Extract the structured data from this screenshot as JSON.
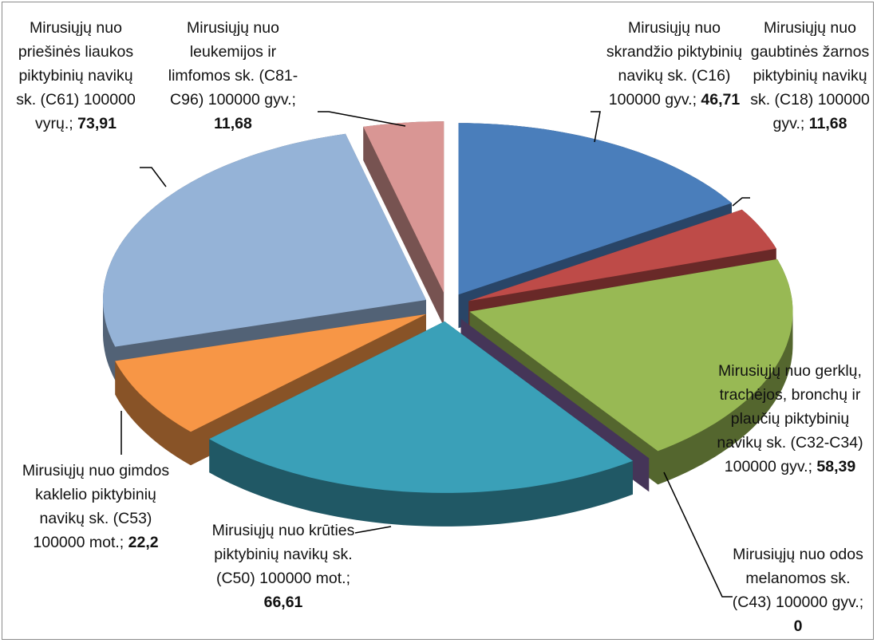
{
  "chart_data": {
    "type": "pie",
    "categories": [
      "Mirusiųjų nuo skrandžio piktybinių navikų sk. (C16) 100000 gyv.;",
      "Mirusiųjų nuo gaubtinės žarnos piktybinių navikų sk. (C18) 100000 gyv.;",
      "Mirusiųjų nuo gerklų, trachėjos, bronchų ir plaučių piktybinių navikų sk. (C32-C34) 100000 gyv.;",
      "Mirusiųjų nuo odos melanomos sk. (C43) 100000 gyv.;",
      "Mirusiųjų nuo krūties piktybinių navikų sk. (C50) 100000 mot.;",
      "Mirusiųjų nuo gimdos kaklelio piktybinių navikų sk. (C53) 100000 mot.;",
      "Mirusiųjų nuo priešinės liaukos piktybinių navikų sk. (C61) 100000 vyrų.;",
      "Mirusiųjų nuo leukemijos ir limfomos sk. (C81-C96) 100000 gyv.;"
    ],
    "values": [
      46.71,
      11.68,
      58.39,
      0,
      66.61,
      22.2,
      73.91,
      11.68
    ],
    "value_labels": [
      "46,71",
      "11,68",
      "58,39",
      "0",
      "66,61",
      "22,2",
      "73,91",
      "11,68"
    ],
    "colors": [
      "#4a7ebb",
      "#be4b48",
      "#98b954",
      "#7d60a0",
      "#3aa0b8",
      "#f79646",
      "#95b3d7",
      "#d99694"
    ]
  }
}
